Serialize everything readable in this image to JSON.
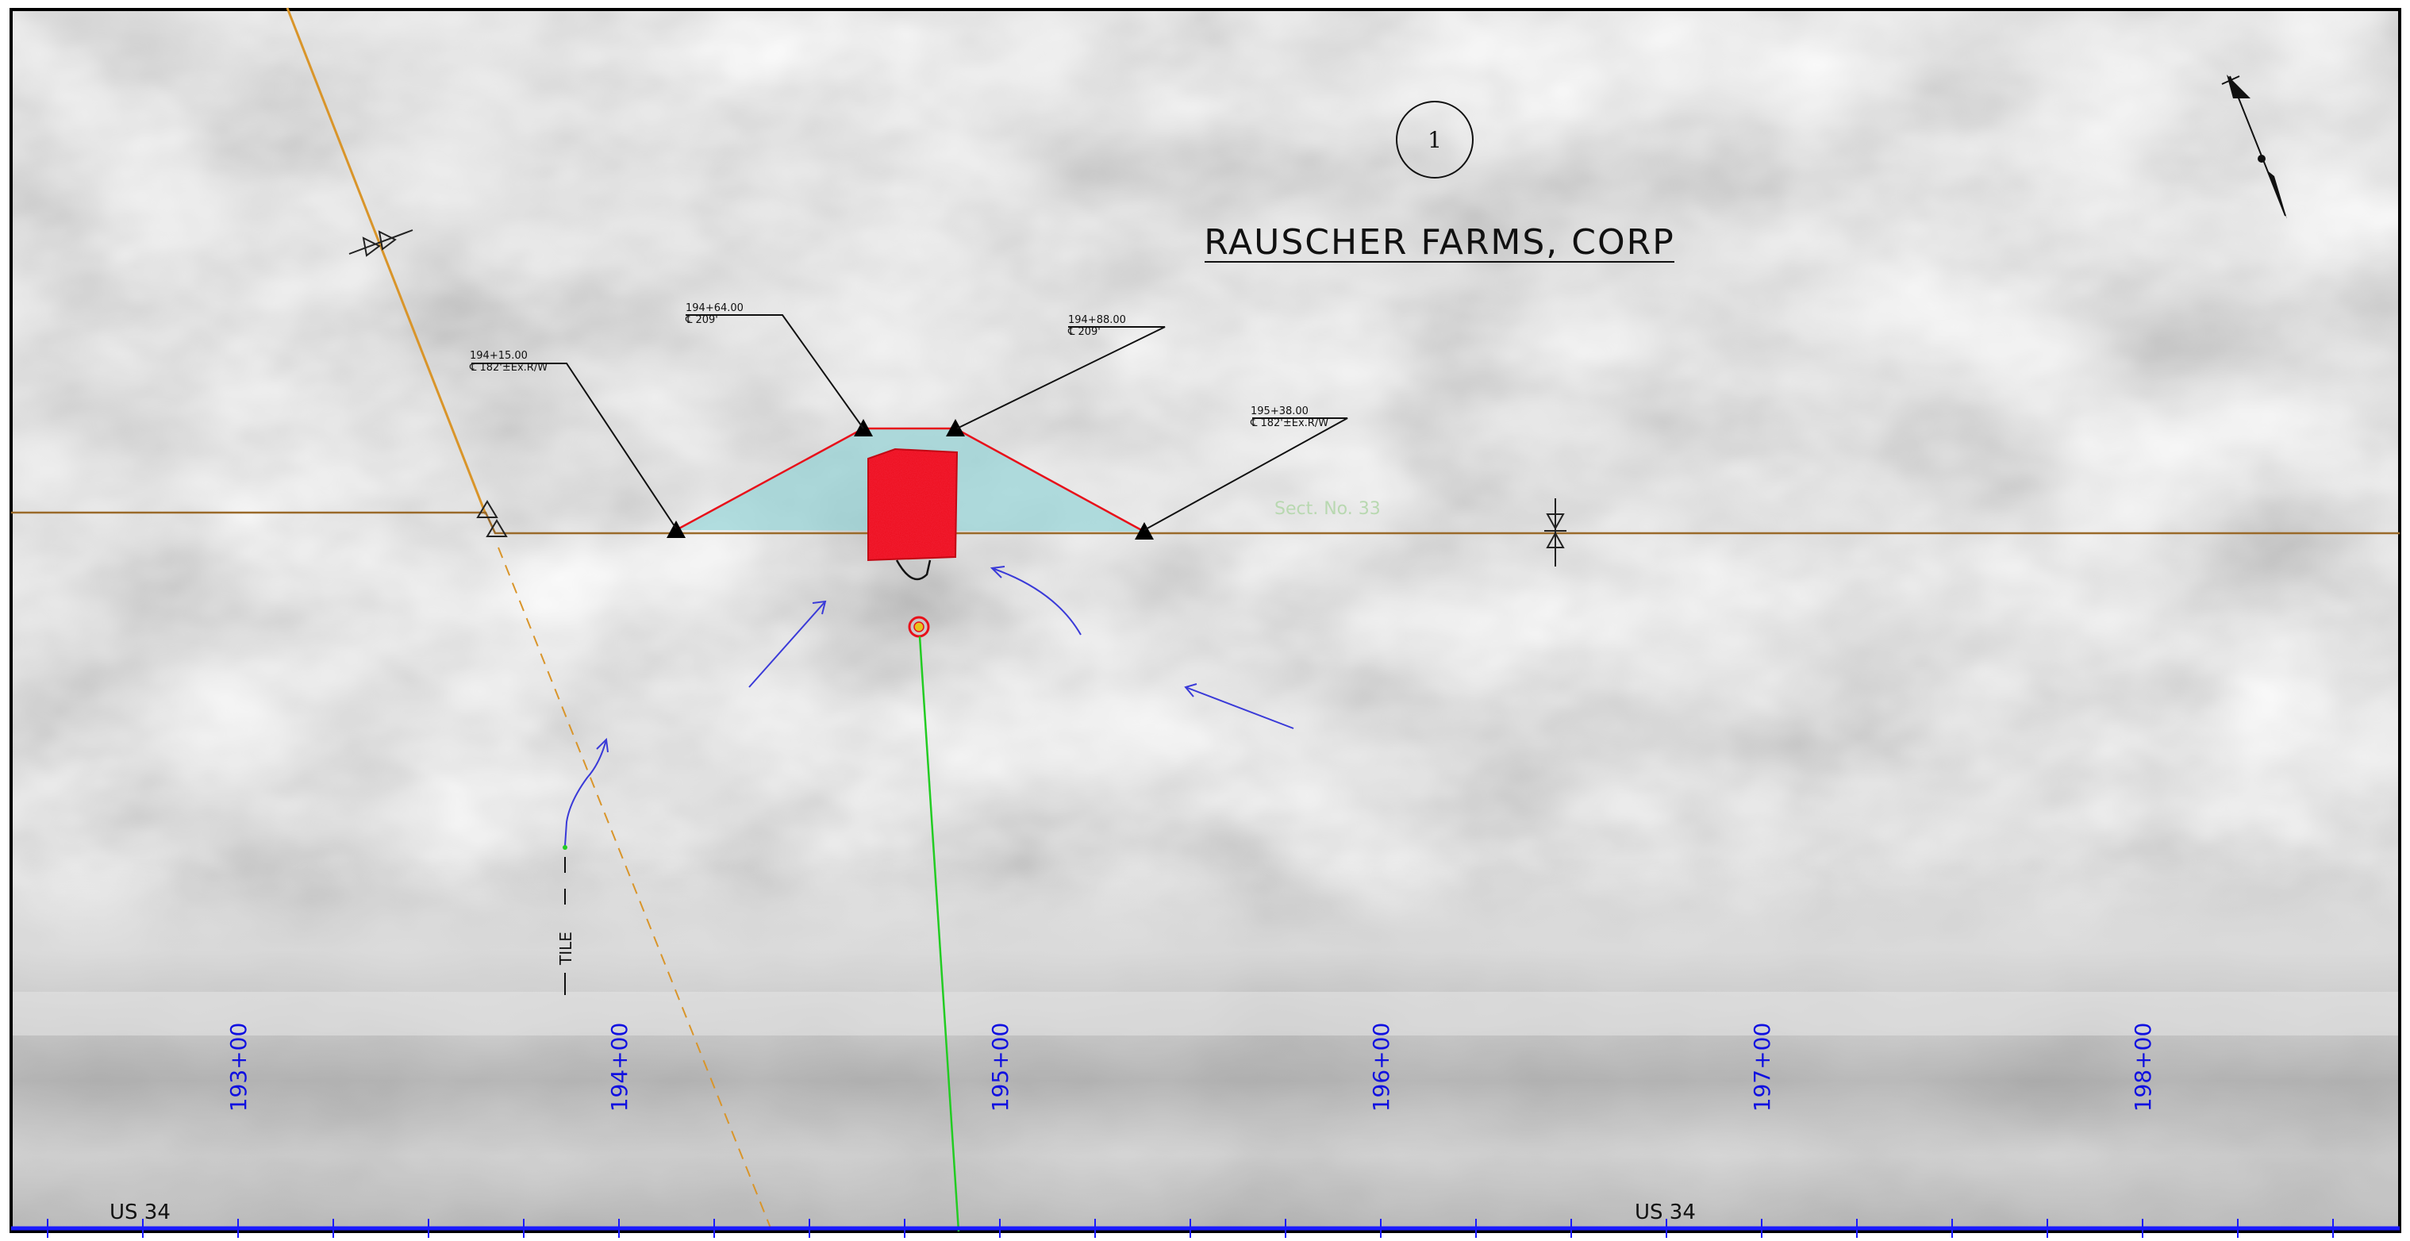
{
  "sheet": {
    "owner_name": "RAUSCHER FARMS, CORP",
    "sheet_marker": "1",
    "section_label": "Sect. No. 33"
  },
  "road": {
    "name_left": "US 34",
    "name_right": "US 34"
  },
  "stations": [
    "193+00",
    "194+00",
    "195+00",
    "196+00",
    "197+00",
    "198+00"
  ],
  "callouts": [
    {
      "station": "194+15.00",
      "note": "℄ 182'±Ex.R/W"
    },
    {
      "station": "194+64.00",
      "note": "℄ 209'"
    },
    {
      "station": "194+88.00",
      "note": "℄ 209'"
    },
    {
      "station": "195+38.00",
      "note": "℄ 182'±Ex.R/W"
    }
  ],
  "tile_label": "TILE",
  "colors": {
    "station_text": "#1010e0",
    "centerline": "#1a1aff",
    "row_line": "#9a6a2a",
    "easement_fill": "#8fd3d6",
    "easement_edge": "#e8101a",
    "structure": "#ee1122",
    "flow_arrow": "#3a3ad8",
    "drain_line": "#22cc22",
    "property_line": "#d9952a"
  },
  "icons": [
    "north-arrow-icon",
    "survey-marker-icon",
    "flow-arrow-icon",
    "manhole-icon",
    "row-monument-icon"
  ]
}
